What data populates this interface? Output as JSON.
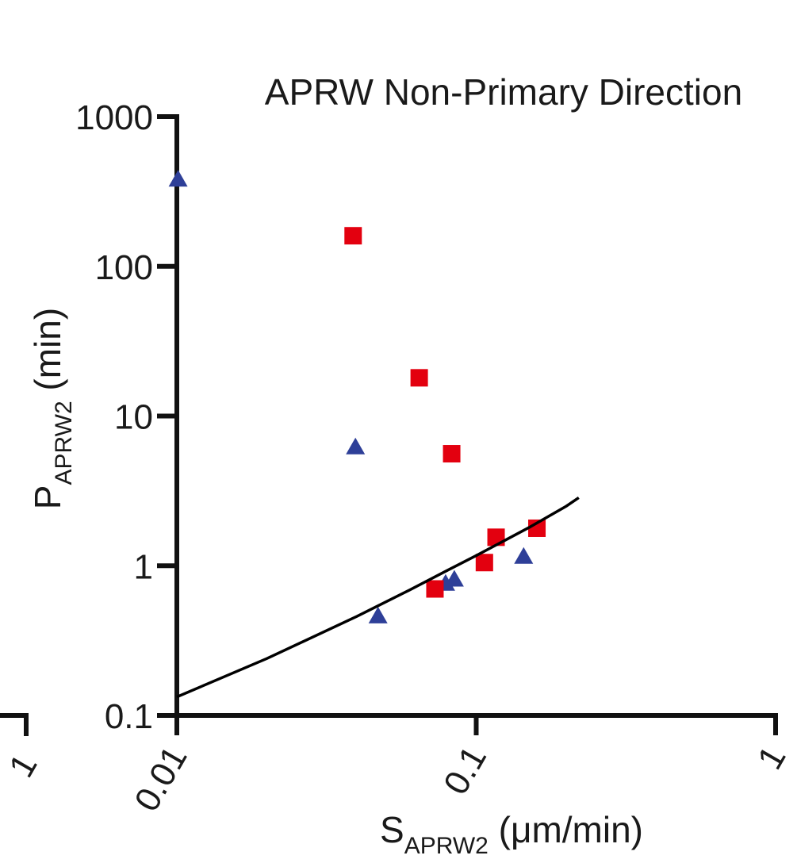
{
  "chart_data": {
    "type": "scatter",
    "title": "APRW Non-Primary Direction",
    "xlabel": {
      "main": "S",
      "sub": "APRW2",
      "unit": " (μm/min)"
    },
    "ylabel": {
      "main": "P",
      "sub": "APRW2",
      "unit": " (min)"
    },
    "xscale": "log",
    "yscale": "log",
    "xlim": [
      0.01,
      1
    ],
    "ylim": [
      0.1,
      1000
    ],
    "xticks": [
      {
        "value": 0.01,
        "label": "0.01"
      },
      {
        "value": 0.1,
        "label": "0.1"
      },
      {
        "value": 1,
        "label": "1"
      }
    ],
    "yticks": [
      {
        "value": 0.1,
        "label": "0.1"
      },
      {
        "value": 1,
        "label": "1"
      },
      {
        "value": 10,
        "label": "10"
      },
      {
        "value": 100,
        "label": "100"
      },
      {
        "value": 1000,
        "label": "1000"
      }
    ],
    "left_stub_label": "1",
    "grid": false,
    "series": [
      {
        "marker": "triangle",
        "color": "#2e3f98",
        "points": [
          {
            "x": 0.0101,
            "y": 380
          },
          {
            "x": 0.0395,
            "y": 6.2
          },
          {
            "x": 0.047,
            "y": 0.46
          },
          {
            "x": 0.079,
            "y": 0.76
          },
          {
            "x": 0.0845,
            "y": 0.81
          },
          {
            "x": 0.144,
            "y": 1.15
          }
        ]
      },
      {
        "marker": "square",
        "color": "#e3000f",
        "points": [
          {
            "x": 0.0388,
            "y": 160
          },
          {
            "x": 0.0645,
            "y": 18
          },
          {
            "x": 0.0828,
            "y": 5.6
          },
          {
            "x": 0.0728,
            "y": 0.7
          },
          {
            "x": 0.1065,
            "y": 1.05
          },
          {
            "x": 0.1165,
            "y": 1.55
          },
          {
            "x": 0.1595,
            "y": 1.78
          }
        ]
      },
      {
        "marker": "line",
        "color": "#000000",
        "points": [
          {
            "x": 0.01,
            "y": 0.133
          },
          {
            "x": 0.02,
            "y": 0.24
          },
          {
            "x": 0.04,
            "y": 0.46
          },
          {
            "x": 0.06,
            "y": 0.69
          },
          {
            "x": 0.08,
            "y": 0.93
          },
          {
            "x": 0.1,
            "y": 1.17
          },
          {
            "x": 0.15,
            "y": 1.8
          },
          {
            "x": 0.2,
            "y": 2.5
          },
          {
            "x": 0.22,
            "y": 2.85
          }
        ]
      }
    ]
  }
}
